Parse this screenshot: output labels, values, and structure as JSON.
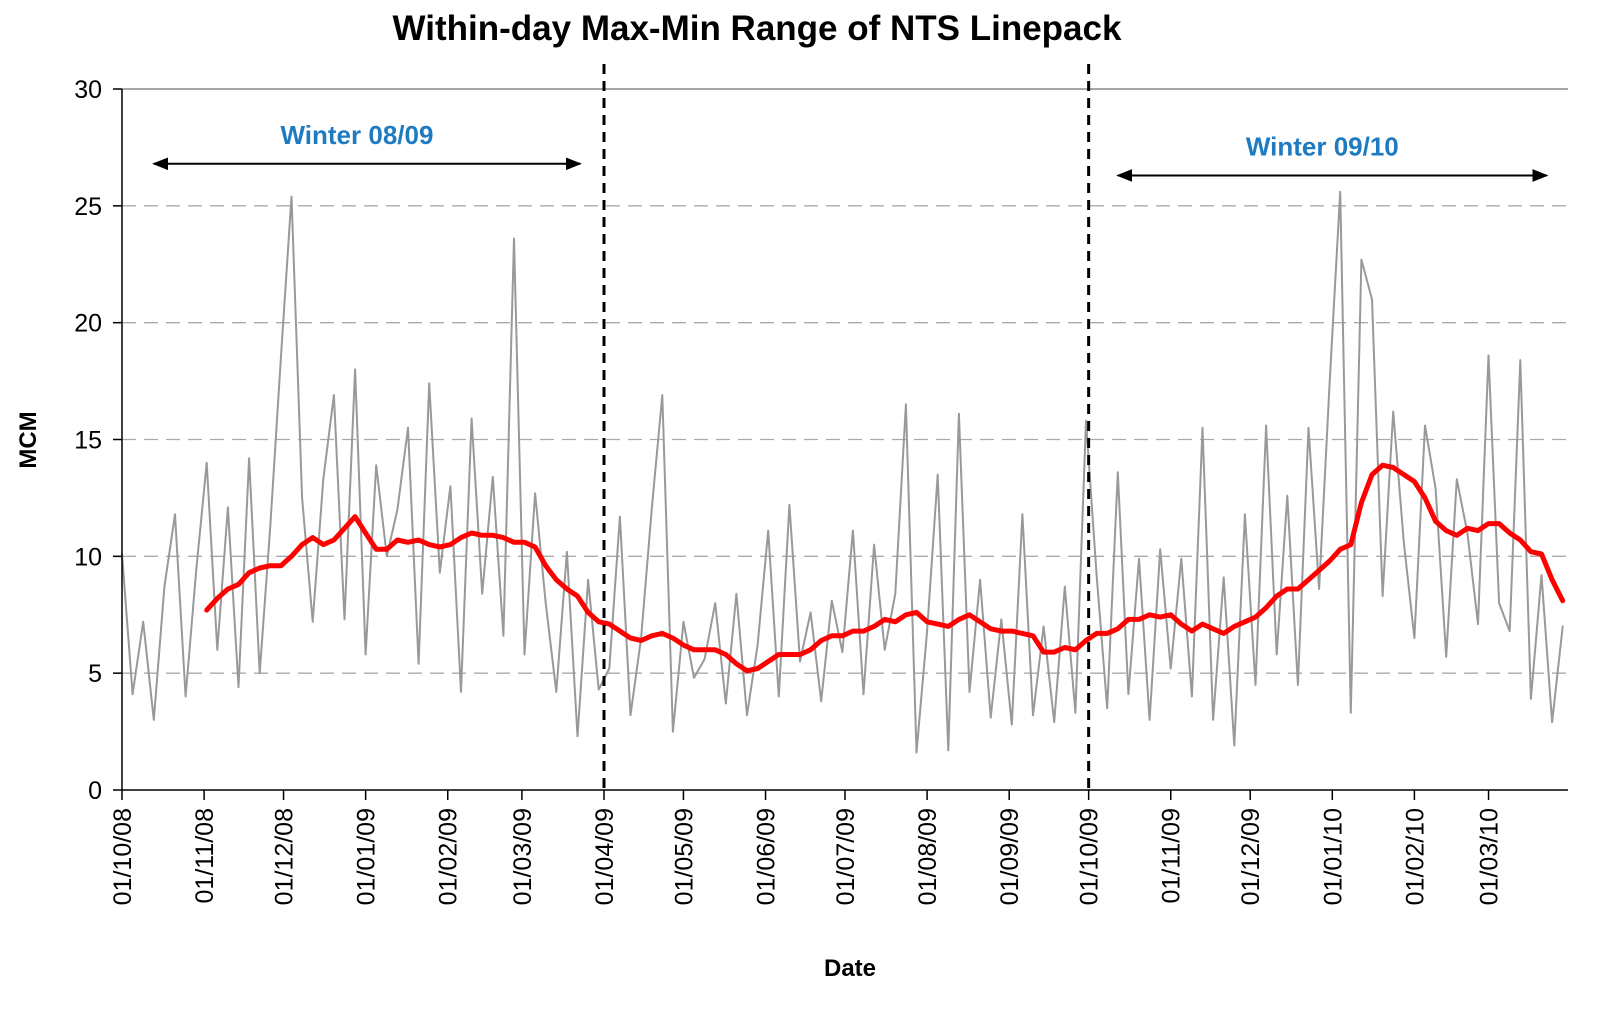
{
  "chart_data": {
    "type": "line",
    "title": "Within-day Max-Min Range of NTS Linepack",
    "x_label": "Date",
    "y_label": "MCM",
    "x": [
      "01/10/08",
      "05/10/08",
      "09/10/08",
      "13/10/08",
      "17/10/08",
      "21/10/08",
      "25/10/08",
      "29/10/08",
      "02/11/08",
      "06/11/08",
      "10/11/08",
      "14/11/08",
      "18/11/08",
      "22/11/08",
      "26/11/08",
      "30/11/08",
      "04/12/08",
      "08/12/08",
      "12/12/08",
      "16/12/08",
      "20/12/08",
      "24/12/08",
      "28/12/08",
      "01/01/09",
      "05/01/09",
      "09/01/09",
      "13/01/09",
      "17/01/09",
      "21/01/09",
      "25/01/09",
      "29/01/09",
      "02/02/09",
      "06/02/09",
      "10/02/09",
      "14/02/09",
      "18/02/09",
      "22/02/09",
      "26/02/09",
      "02/03/09",
      "06/03/09",
      "10/03/09",
      "14/03/09",
      "18/03/09",
      "22/03/09",
      "26/03/09",
      "30/03/09",
      "03/04/09",
      "07/04/09",
      "11/04/09",
      "15/04/09",
      "19/04/09",
      "23/04/09",
      "27/04/09",
      "01/05/09",
      "05/05/09",
      "09/05/09",
      "13/05/09",
      "17/05/09",
      "21/05/09",
      "25/05/09",
      "29/05/09",
      "02/06/09",
      "06/06/09",
      "10/06/09",
      "14/06/09",
      "18/06/09",
      "22/06/09",
      "26/06/09",
      "30/06/09",
      "04/07/09",
      "08/07/09",
      "12/07/09",
      "16/07/09",
      "20/07/09",
      "24/07/09",
      "28/07/09",
      "01/08/09",
      "05/08/09",
      "09/08/09",
      "13/08/09",
      "17/08/09",
      "21/08/09",
      "25/08/09",
      "29/08/09",
      "02/09/09",
      "06/09/09",
      "10/09/09",
      "14/09/09",
      "18/09/09",
      "22/09/09",
      "26/09/09",
      "30/09/09",
      "04/10/09",
      "08/10/09",
      "12/10/09",
      "16/10/09",
      "20/10/09",
      "24/10/09",
      "28/10/09",
      "01/11/09",
      "05/11/09",
      "09/11/09",
      "13/11/09",
      "17/11/09",
      "21/11/09",
      "25/11/09",
      "29/11/09",
      "03/12/09",
      "07/12/09",
      "11/12/09",
      "15/12/09",
      "19/12/09",
      "23/12/09",
      "27/12/09",
      "31/12/09",
      "04/01/10",
      "08/01/10",
      "12/01/10",
      "16/01/10",
      "20/01/10",
      "24/01/10",
      "28/01/10",
      "01/02/10",
      "05/02/10",
      "09/02/10",
      "13/02/10",
      "17/02/10",
      "21/02/10",
      "25/02/10",
      "01/03/10",
      "05/03/10",
      "09/03/10",
      "13/03/10",
      "17/03/10",
      "21/03/10",
      "25/03/10",
      "29/03/10"
    ],
    "series": [
      {
        "color": "#999999",
        "width": 2,
        "values": [
          10.1,
          4.1,
          7.2,
          3.0,
          8.7,
          11.8,
          4.0,
          9.4,
          14.0,
          6.0,
          12.1,
          4.4,
          14.2,
          5.0,
          11.3,
          18.5,
          25.4,
          12.5,
          7.2,
          13.3,
          16.9,
          7.3,
          18.0,
          5.8,
          13.9,
          10.0,
          12.0,
          15.5,
          5.4,
          17.4,
          9.3,
          13.0,
          4.2,
          15.9,
          8.4,
          13.4,
          6.6,
          23.6,
          5.8,
          12.7,
          8.0,
          4.2,
          10.2,
          2.3,
          9.0,
          4.3,
          5.2,
          11.7,
          3.2,
          6.5,
          12.0,
          16.9,
          2.5,
          7.2,
          4.8,
          5.6,
          8.0,
          3.7,
          8.4,
          3.2,
          6.2,
          11.1,
          4.0,
          12.2,
          5.5,
          7.6,
          3.8,
          8.1,
          5.9,
          11.1,
          4.1,
          10.5,
          6.0,
          8.4,
          16.5,
          1.6,
          6.8,
          13.5,
          1.7,
          16.1,
          4.2,
          9.0,
          3.1,
          7.3,
          2.8,
          11.8,
          3.2,
          7.0,
          2.9,
          8.7,
          3.3,
          15.8,
          9.2,
          3.5,
          13.6,
          4.1,
          9.9,
          3.0,
          10.3,
          5.2,
          9.9,
          4.0,
          15.5,
          3.0,
          9.1,
          1.9,
          11.8,
          4.5,
          15.6,
          5.8,
          12.6,
          4.5,
          15.5,
          8.6,
          17.4,
          25.6,
          3.3,
          22.7,
          21.0,
          8.3,
          16.2,
          10.6,
          6.5,
          15.6,
          12.9,
          5.7,
          13.3,
          11.0,
          7.1,
          18.6,
          8.0,
          6.8,
          18.4,
          3.9,
          9.2,
          2.9,
          7.0
        ]
      },
      {
        "color": "#ff0000",
        "width": 5,
        "values": [
          null,
          null,
          null,
          null,
          null,
          null,
          null,
          null,
          7.7,
          8.2,
          8.6,
          8.8,
          9.3,
          9.5,
          9.6,
          9.6,
          10.0,
          10.5,
          10.8,
          10.5,
          10.7,
          11.2,
          11.7,
          11.0,
          10.3,
          10.3,
          10.7,
          10.6,
          10.7,
          10.5,
          10.4,
          10.5,
          10.8,
          11.0,
          10.9,
          10.9,
          10.8,
          10.6,
          10.6,
          10.4,
          9.6,
          9.0,
          8.6,
          8.3,
          7.6,
          7.2,
          7.1,
          6.8,
          6.5,
          6.4,
          6.6,
          6.7,
          6.5,
          6.2,
          6.0,
          6.0,
          6.0,
          5.8,
          5.4,
          5.1,
          5.2,
          5.5,
          5.8,
          5.8,
          5.8,
          6.0,
          6.4,
          6.6,
          6.6,
          6.8,
          6.8,
          7.0,
          7.3,
          7.2,
          7.5,
          7.6,
          7.2,
          7.1,
          7.0,
          7.3,
          7.5,
          7.2,
          6.9,
          6.8,
          6.8,
          6.7,
          6.6,
          5.9,
          5.9,
          6.1,
          6.0,
          6.4,
          6.7,
          6.7,
          6.9,
          7.3,
          7.3,
          7.5,
          7.4,
          7.5,
          7.1,
          6.8,
          7.1,
          6.9,
          6.7,
          7.0,
          7.2,
          7.4,
          7.8,
          8.3,
          8.6,
          8.6,
          9.0,
          9.4,
          9.8,
          10.3,
          10.5,
          12.3,
          13.5,
          13.9,
          13.8,
          13.5,
          13.2,
          12.5,
          11.5,
          11.1,
          10.9,
          11.2,
          11.1,
          11.4,
          11.4,
          11.0,
          10.7,
          10.2,
          10.1,
          9.0,
          8.1
        ]
      }
    ],
    "xlim": [
      "01/10/08",
      "31/03/10"
    ],
    "xticks": [
      "01/10/08",
      "01/11/08",
      "01/12/08",
      "01/01/09",
      "01/02/09",
      "01/03/09",
      "01/04/09",
      "01/05/09",
      "01/06/09",
      "01/07/09",
      "01/08/09",
      "01/09/09",
      "01/10/09",
      "01/11/09",
      "01/12/09",
      "01/01/10",
      "01/02/10",
      "01/03/10"
    ],
    "ylim": [
      0,
      30
    ],
    "yticks": [
      0,
      5,
      10,
      15,
      20,
      25,
      30
    ],
    "grid": true,
    "vlines": [
      "01/04/09",
      "01/10/09"
    ],
    "annotations": [
      {
        "text": "Winter 08/09",
        "start": "13/10/08",
        "end": "23/03/09",
        "y": 26.8,
        "color": "#1e7bc2"
      },
      {
        "text": "Winter 09/10",
        "start": "12/10/09",
        "end": "23/03/10",
        "y": 26.3,
        "color": "#1e7bc2"
      }
    ]
  }
}
